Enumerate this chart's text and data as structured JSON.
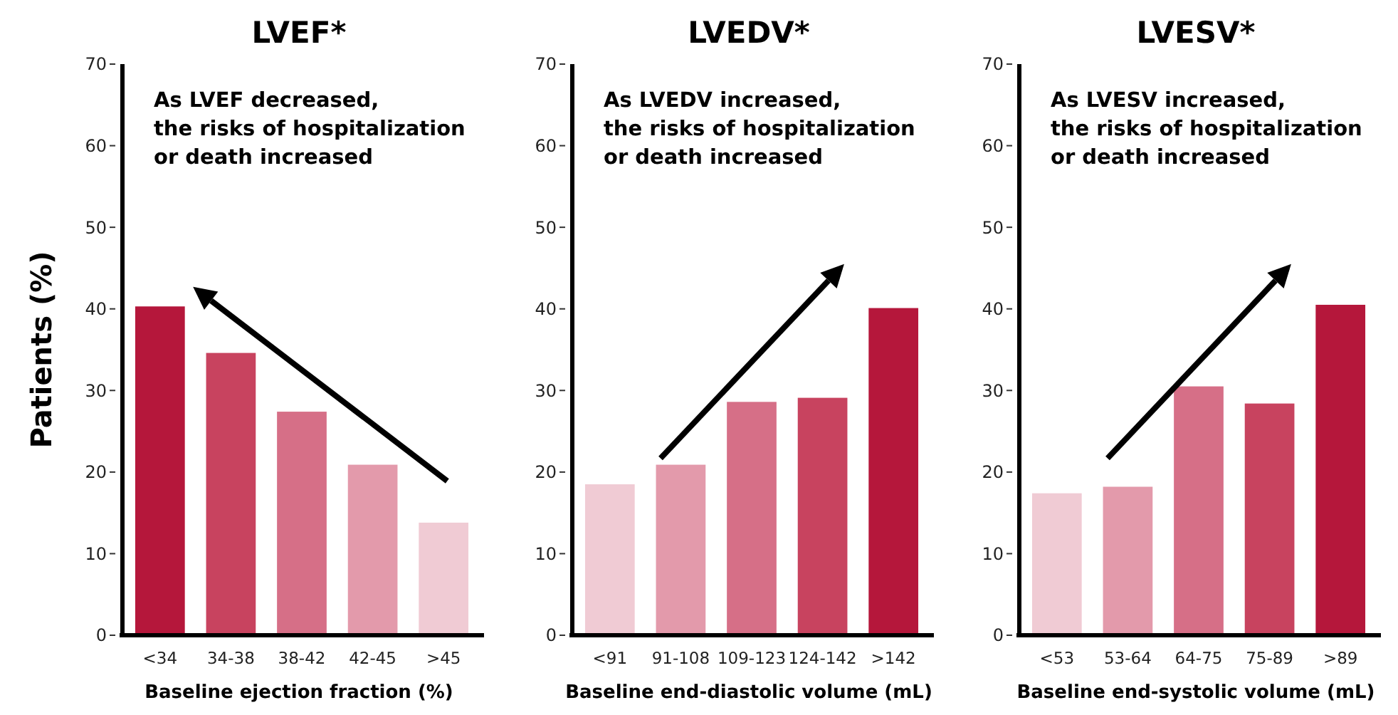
{
  "chart_data": [
    {
      "type": "bar",
      "title": "LVEF*",
      "xlabel": "Baseline ejection fraction (%)",
      "ylabel": "Patients (%)",
      "categories": [
        "<34",
        "34-38",
        "38-42",
        "42-45",
        ">45"
      ],
      "values": [
        40.3,
        34.6,
        27.4,
        20.9,
        13.8
      ],
      "colors": [
        "#b5173b",
        "#c8435f",
        "#d66f87",
        "#e39aab",
        "#f0cbd4"
      ],
      "ylim": [
        0,
        70
      ],
      "yticks": [
        0,
        10,
        20,
        30,
        40,
        50,
        60,
        70
      ],
      "annotations": [
        "As LVEF decreased,\nthe risks of hospitalization\nor death increased"
      ]
    },
    {
      "type": "bar",
      "title": "LVEDV*",
      "xlabel": "Baseline end-diastolic volume (mL)",
      "categories": [
        "<91",
        "91-108",
        "109-123",
        "124-142",
        ">142"
      ],
      "values": [
        18.5,
        20.9,
        28.6,
        29.1,
        40.1
      ],
      "colors": [
        "#f0cbd4",
        "#e39aab",
        "#d66f87",
        "#c8435f",
        "#b5173b"
      ],
      "ylim": [
        0,
        70
      ],
      "yticks": [
        0,
        10,
        20,
        30,
        40,
        50,
        60,
        70
      ],
      "annotations": [
        "As LVEDV increased,\nthe risks of hospitalization\nor death increased"
      ]
    },
    {
      "type": "bar",
      "title": "LVESV*",
      "xlabel": "Baseline end-systolic volume (mL)",
      "categories": [
        "<53",
        "53-64",
        "64-75",
        "75-89",
        ">89"
      ],
      "values": [
        17.4,
        18.2,
        30.5,
        28.4,
        40.5
      ],
      "colors": [
        "#f0cbd4",
        "#e39aab",
        "#d66f87",
        "#c8435f",
        "#b5173b"
      ],
      "ylim": [
        0,
        70
      ],
      "yticks": [
        0,
        10,
        20,
        30,
        40,
        50,
        60,
        70
      ],
      "annotations": [
        "As LVESV increased,\nthe risks of hospitalization\nor death increased"
      ]
    }
  ]
}
